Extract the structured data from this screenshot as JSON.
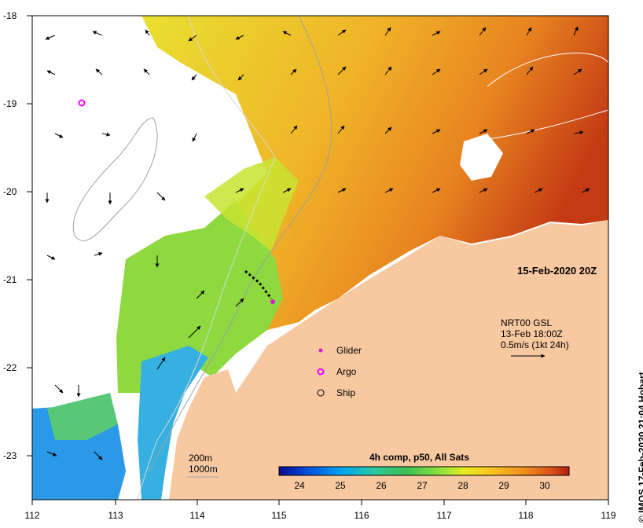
{
  "axes": {
    "x_ticks": [
      "112",
      "113",
      "114",
      "115",
      "116",
      "117",
      "118",
      "119"
    ],
    "y_ticks": [
      "-18",
      "-19",
      "-20",
      "-21",
      "-22",
      "-23"
    ]
  },
  "map_info": {
    "date": "15-Feb-2020 20Z",
    "vector_title": "NRT00 GSL",
    "vector_time": "13-Feb 18:00Z",
    "vector_scale": "0.5m/s (1kt 24h)",
    "credit": "© IMOS 17-Feb-2020 21:04 Hobart"
  },
  "legend": {
    "glider": "Glider",
    "argo": "Argo",
    "ship": "Ship",
    "glider_color": "#d020d0",
    "argo_color": "#ff00ff"
  },
  "bathymetry": {
    "c200": "200m",
    "c1000": "1000m"
  },
  "colorbar": {
    "title": "4h comp, p50, All Sats",
    "ticks": [
      "24",
      "25",
      "26",
      "27",
      "28",
      "29",
      "30"
    ],
    "stops": [
      "#0a0a8c",
      "#0050e0",
      "#00a8f0",
      "#2cc8a0",
      "#3cc050",
      "#8ce040",
      "#e8ec20",
      "#f8c020",
      "#f09020",
      "#e05818",
      "#b41e10"
    ]
  },
  "colors": {
    "land": "#f8c8a0",
    "nodata": "#ffffff",
    "sea_warm": "#d86a20",
    "sea_mid": "#f0b020",
    "sea_cool": "#8ad640",
    "sea_cold": "#2aa0e8"
  }
}
